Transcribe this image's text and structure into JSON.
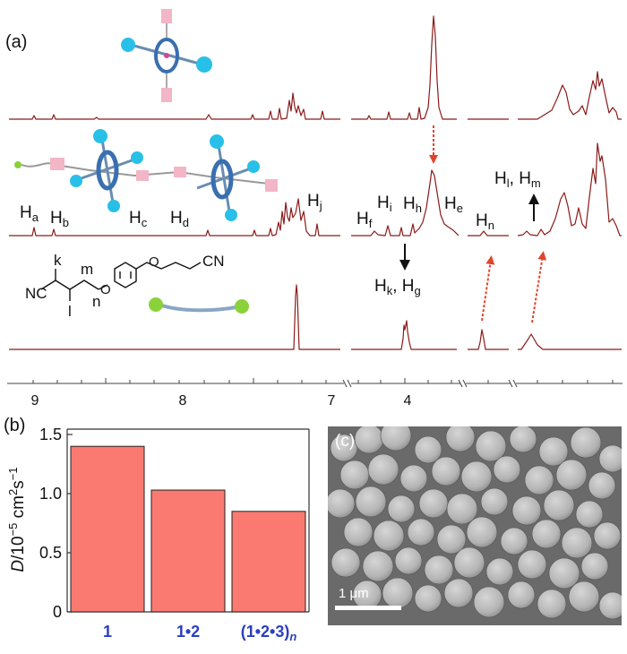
{
  "panel_a": {
    "label": "(a)",
    "axis_ticks": [
      "9",
      "8",
      "7",
      "4"
    ],
    "peak_labels": [
      {
        "id": "Ha",
        "base": "H",
        "sub": "a"
      },
      {
        "id": "Hb",
        "base": "H",
        "sub": "b"
      },
      {
        "id": "Hc",
        "base": "H",
        "sub": "c"
      },
      {
        "id": "Hd",
        "base": "H",
        "sub": "d"
      },
      {
        "id": "Hj",
        "base": "H",
        "sub": "j"
      },
      {
        "id": "Hf",
        "base": "H",
        "sub": "f"
      },
      {
        "id": "Hi",
        "base": "H",
        "sub": "i"
      },
      {
        "id": "Hh",
        "base": "H",
        "sub": "h"
      },
      {
        "id": "He",
        "base": "H",
        "sub": "e"
      },
      {
        "id": "Hn",
        "base": "H",
        "sub": "n"
      }
    ],
    "paired_labels": [
      {
        "id": "Hl-Hm",
        "a_base": "H",
        "a_sub": "l",
        "b_base": "H",
        "b_sub": "m"
      },
      {
        "id": "Hk-Hg",
        "a_base": "H",
        "a_sub": "k",
        "b_base": "H",
        "b_sub": "g"
      }
    ],
    "structure": {
      "atom_labels": [
        "k",
        "m",
        "l",
        "n"
      ],
      "nc_left": "NC",
      "cn_right": "CN"
    },
    "colors": {
      "spectrum": "#8b1a1a",
      "arrow_red": "#e0452c",
      "arrow_black": "#111111"
    }
  },
  "panel_b": {
    "label": "(b)",
    "ylabel_symbol": "D",
    "ylabel_rest": "/10",
    "ylabel_exp1": "−5",
    "ylabel_unit": " cm",
    "ylabel_exp2": "2",
    "ylabel_unit2": "s",
    "ylabel_exp3": "−1",
    "y_ticks": [
      "0",
      "0.5",
      "1.0",
      "1.5"
    ],
    "categories": [
      {
        "main": "1"
      },
      {
        "main": "1•2"
      },
      {
        "main": "(1•2•3)",
        "sub": "n"
      }
    ],
    "colors": {
      "bar": "#fa7a72",
      "category_text": "#2b3fbf"
    }
  },
  "panel_c": {
    "label": "(c)",
    "scale_text": "1 μm"
  },
  "chart_data": {
    "type": "bar",
    "categories": [
      "1",
      "1•2",
      "(1•2•3)n"
    ],
    "values": [
      1.4,
      1.03,
      0.85
    ],
    "ylabel": "D/10−5 cm2s−1",
    "ylim": [
      0,
      1.5
    ],
    "grid": false
  }
}
